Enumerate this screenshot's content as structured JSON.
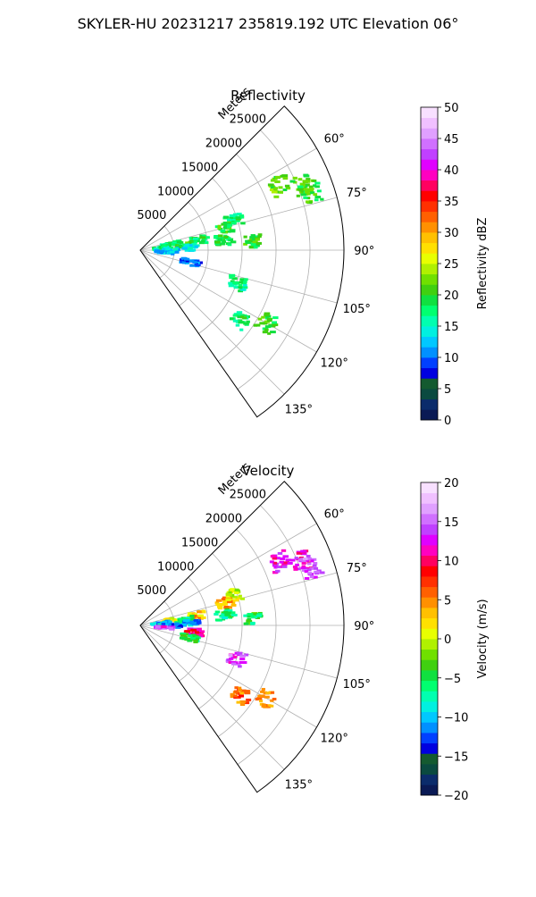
{
  "suptitle": "SKYLER-HU  20231217  235819.192 UTC Elevation 06°",
  "chart_data": [
    {
      "type": "polar-sector",
      "title": "Reflectivity",
      "range_label": "Meters",
      "radial_ticks": [
        "5000",
        "10000",
        "15000",
        "20000",
        "25000"
      ],
      "radial_tick_values": [
        5000,
        10000,
        15000,
        20000,
        25000
      ],
      "rmax": 30000,
      "theta_min_deg": 45,
      "theta_max_deg": 145,
      "angle_ticks": [
        "60°",
        "75°",
        "90°",
        "105°",
        "120°",
        "135°"
      ],
      "angle_tick_values": [
        60,
        75,
        90,
        105,
        120,
        135
      ],
      "grid": true,
      "colorbar": {
        "label": "Reflectivity dBZ",
        "min": 0,
        "max": 50,
        "ticks": [
          "0",
          "5",
          "10",
          "15",
          "20",
          "25",
          "30",
          "35",
          "40",
          "45",
          "50"
        ],
        "colors": [
          "#0a1a55",
          "#0b2c6b",
          "#0a4a40",
          "#145a30",
          "#0000e0",
          "#0040ff",
          "#0090ff",
          "#00c8ff",
          "#00f0e0",
          "#00ffb0",
          "#00ff70",
          "#10e040",
          "#40d010",
          "#70e000",
          "#b0f000",
          "#e8ff00",
          "#ffe000",
          "#ffc000",
          "#ff9000",
          "#ff6000",
          "#ff3000",
          "#ff0000",
          "#ff0060",
          "#ff00c0",
          "#e000ff",
          "#c040ff",
          "#d070ff",
          "#e0a0ff",
          "#f0c0ff",
          "#f8e0ff"
        ]
      },
      "echo_clusters": [
        {
          "theta": 65,
          "r": 22500,
          "value": 22
        },
        {
          "theta": 68,
          "r": 25500,
          "value": 21
        },
        {
          "theta": 71,
          "r": 26500,
          "value": 20
        },
        {
          "theta": 79,
          "r": 4500,
          "value": 18
        },
        {
          "theta": 80,
          "r": 8500,
          "value": 19
        },
        {
          "theta": 83,
          "r": 6500,
          "value": 20
        },
        {
          "theta": 84,
          "r": 3000,
          "value": 17
        },
        {
          "theta": 87,
          "r": 7500,
          "value": 14
        },
        {
          "theta": 90,
          "r": 4500,
          "value": 13
        },
        {
          "theta": 95,
          "r": 3500,
          "value": 12
        },
        {
          "theta": 75,
          "r": 13000,
          "value": 20
        },
        {
          "theta": 72,
          "r": 14500,
          "value": 18
        },
        {
          "theta": 83,
          "r": 12500,
          "value": 19
        },
        {
          "theta": 86,
          "r": 16500,
          "value": 20
        },
        {
          "theta": 104,
          "r": 7500,
          "value": 10
        },
        {
          "theta": 120,
          "r": 21500,
          "value": 20
        },
        {
          "theta": 125,
          "r": 18000,
          "value": 18
        },
        {
          "theta": 109,
          "r": 15000,
          "value": 17
        }
      ]
    },
    {
      "type": "polar-sector",
      "title": "Velocity",
      "range_label": "Meters",
      "radial_ticks": [
        "5000",
        "10000",
        "15000",
        "20000",
        "25000"
      ],
      "radial_tick_values": [
        5000,
        10000,
        15000,
        20000,
        25000
      ],
      "rmax": 30000,
      "theta_min_deg": 45,
      "theta_max_deg": 145,
      "angle_ticks": [
        "60°",
        "75°",
        "90°",
        "105°",
        "120°",
        "135°"
      ],
      "angle_tick_values": [
        60,
        75,
        90,
        105,
        120,
        135
      ],
      "grid": true,
      "colorbar": {
        "label": "Velocity (m/s)",
        "min": -20,
        "max": 20,
        "ticks": [
          "−20",
          "−15",
          "−10",
          "−5",
          "0",
          "5",
          "10",
          "15",
          "20"
        ],
        "colors": [
          "#0a1a55",
          "#0b2c6b",
          "#0a4a40",
          "#145a30",
          "#0000e0",
          "#0040ff",
          "#0090ff",
          "#00c8ff",
          "#00f0e0",
          "#00ffb0",
          "#00ff70",
          "#10e040",
          "#40d010",
          "#70e000",
          "#b0f000",
          "#e8ff00",
          "#ffe000",
          "#ffc000",
          "#ff9000",
          "#ff6000",
          "#ff3000",
          "#ff0000",
          "#ff0060",
          "#ff00c0",
          "#e000ff",
          "#c040ff",
          "#d070ff",
          "#e0a0ff",
          "#f0c0ff",
          "#f8e0ff"
        ]
      },
      "echo_clusters": [
        {
          "theta": 65,
          "r": 22500,
          "value": 12
        },
        {
          "theta": 68,
          "r": 25500,
          "value": 11
        },
        {
          "theta": 71,
          "r": 26500,
          "value": 14
        },
        {
          "theta": 79,
          "r": 4500,
          "value": 2
        },
        {
          "theta": 80,
          "r": 8500,
          "value": 3
        },
        {
          "theta": 83,
          "r": 6500,
          "value": -7
        },
        {
          "theta": 84,
          "r": 3000,
          "value": -10
        },
        {
          "theta": 87,
          "r": 7500,
          "value": -11
        },
        {
          "theta": 90,
          "r": 4500,
          "value": -12
        },
        {
          "theta": 95,
          "r": 3500,
          "value": 14
        },
        {
          "theta": 97,
          "r": 8000,
          "value": 11
        },
        {
          "theta": 75,
          "r": 13000,
          "value": 4
        },
        {
          "theta": 72,
          "r": 14500,
          "value": 0
        },
        {
          "theta": 83,
          "r": 12500,
          "value": -6
        },
        {
          "theta": 86,
          "r": 16500,
          "value": -5
        },
        {
          "theta": 104,
          "r": 7500,
          "value": -5
        },
        {
          "theta": 120,
          "r": 21500,
          "value": 5
        },
        {
          "theta": 125,
          "r": 18000,
          "value": 6
        },
        {
          "theta": 109,
          "r": 15000,
          "value": 14
        }
      ]
    }
  ]
}
